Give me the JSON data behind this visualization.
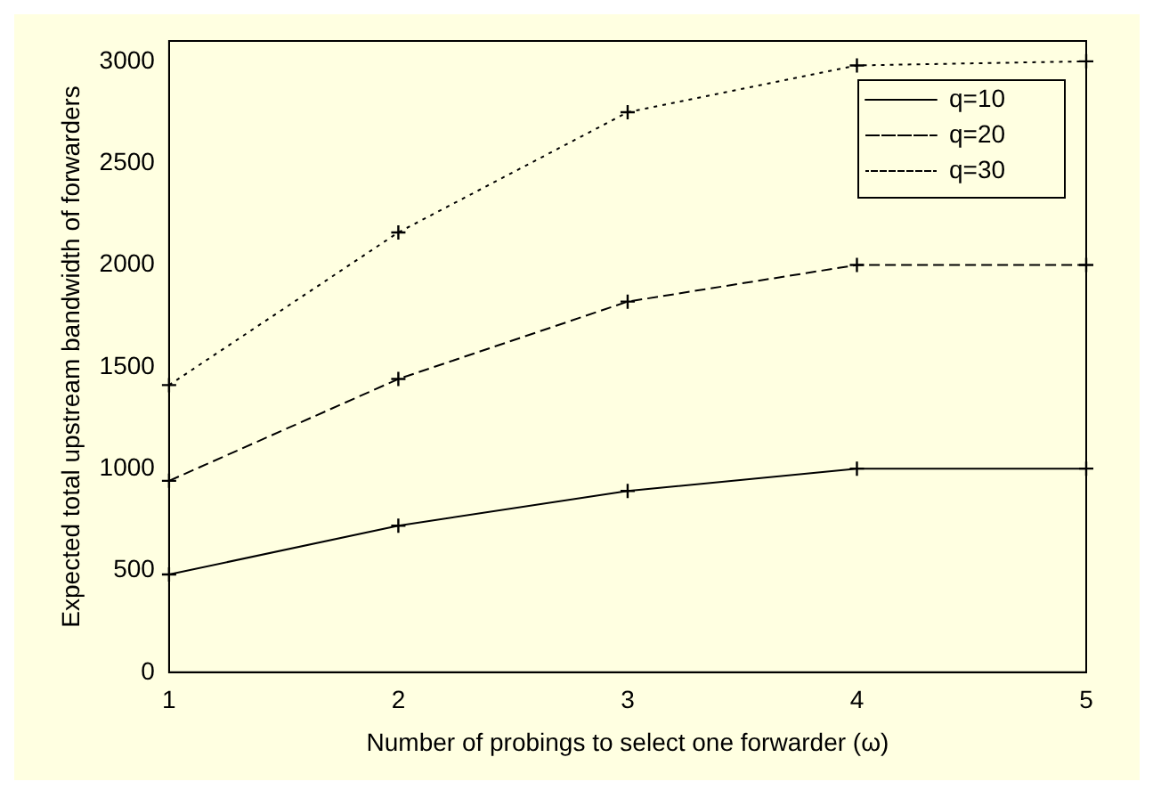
{
  "chart_data": {
    "type": "line",
    "xlabel": "Number of probings to select one forwarder (ω)",
    "ylabel": "Expected total upstream bandwidth of forwarders",
    "x": [
      1,
      2,
      3,
      4,
      5
    ],
    "series": [
      {
        "name": "q=10",
        "color": "#000000",
        "values": [
          480,
          720,
          890,
          1000,
          1000
        ],
        "line_style": "solid",
        "marker": "cross"
      },
      {
        "name": "q=20",
        "color": "#000000",
        "values": [
          940,
          1440,
          1820,
          2000,
          2000
        ],
        "line_style": "dashed",
        "marker": "cross"
      },
      {
        "name": "q=30",
        "color": "#000000",
        "values": [
          1410,
          2160,
          2750,
          2980,
          3000
        ],
        "line_style": "dotted",
        "marker": "cross"
      }
    ],
    "xlim": [
      1,
      5
    ],
    "xticks": [
      1,
      2,
      3,
      4,
      5
    ],
    "ylim": [
      0,
      3100
    ],
    "yticks": [
      0,
      500,
      1000,
      1500,
      2000,
      2500,
      3000
    ],
    "grid": false,
    "legend": "top right"
  }
}
